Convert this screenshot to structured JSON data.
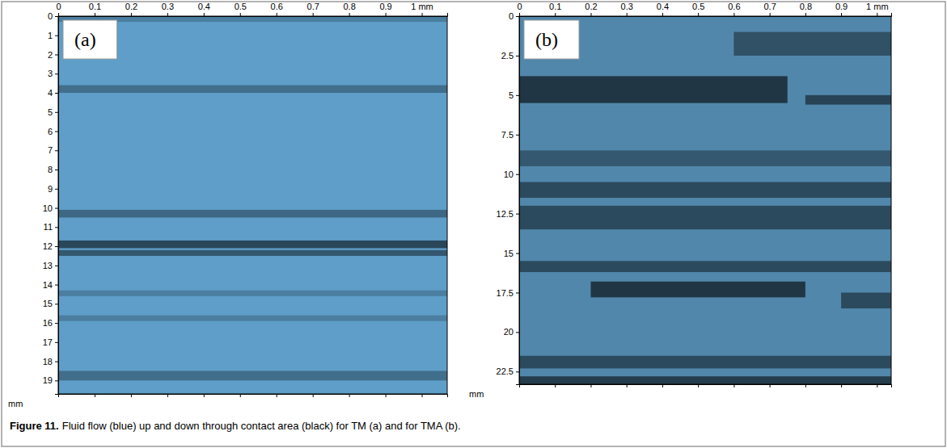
{
  "caption_label": "Figure 11.",
  "caption": "Fluid flow (blue) up and down through contact area (black) for TM (a) and for TMA (b).",
  "chart_data": [
    {
      "type": "contact_map",
      "label": "(a)",
      "y_label": "mm",
      "color": "#6cb4e4",
      "xlim": [
        0,
        1.07
      ],
      "xticks": [
        0,
        0.1,
        0.2,
        0.3,
        0.4,
        0.5,
        0.6,
        0.7,
        0.8,
        0.9,
        {
          "value": 1,
          "label": "1 mm"
        }
      ],
      "ylim": [
        0,
        19.7
      ],
      "yticks": [
        0,
        1,
        2,
        3,
        4,
        5,
        6,
        7,
        8,
        9,
        10,
        11,
        12,
        13,
        14,
        15,
        16,
        17,
        18,
        19
      ],
      "bands": [
        {
          "x": [
            0,
            1.07
          ],
          "y": [
            0,
            19.7
          ],
          "density": 0.12
        },
        {
          "x": [
            0,
            1.07
          ],
          "y": [
            0,
            0.3
          ],
          "density": 0.2
        },
        {
          "x": [
            0,
            1.07
          ],
          "y": [
            3.6,
            4.0
          ],
          "density": 0.3
        },
        {
          "x": [
            0,
            1.07
          ],
          "y": [
            10.1,
            10.5
          ],
          "density": 0.35
        },
        {
          "x": [
            0,
            1.07
          ],
          "y": [
            11.7,
            12.1
          ],
          "density": 0.55
        },
        {
          "x": [
            0,
            1.07
          ],
          "y": [
            12.2,
            12.5
          ],
          "density": 0.45
        },
        {
          "x": [
            0,
            1.07
          ],
          "y": [
            14.3,
            14.6
          ],
          "density": 0.2
        },
        {
          "x": [
            0,
            1.07
          ],
          "y": [
            15.6,
            15.9
          ],
          "density": 0.2
        },
        {
          "x": [
            0,
            1.07
          ],
          "y": [
            18.5,
            19.0
          ],
          "density": 0.3
        }
      ]
    },
    {
      "type": "contact_map",
      "label": "(b)",
      "y_label": "mm",
      "color": "#6cb4e4",
      "xlim": [
        0,
        1.04
      ],
      "xticks": [
        0,
        0.1,
        0.2,
        0.3,
        0.4,
        0.5,
        0.6,
        0.7,
        0.8,
        0.9,
        {
          "value": 1,
          "label": "1 mm"
        }
      ],
      "ylim": [
        0,
        23.3
      ],
      "yticks": [
        0,
        2.5,
        5,
        7.5,
        10,
        12.5,
        15,
        17.5,
        20,
        22.5
      ],
      "bands": [
        {
          "x": [
            0,
            1.04
          ],
          "y": [
            0,
            23.3
          ],
          "density": 0.25
        },
        {
          "x": [
            0.6,
            1.04
          ],
          "y": [
            1.0,
            2.5
          ],
          "density": 0.4
        },
        {
          "x": [
            0,
            0.75
          ],
          "y": [
            3.8,
            5.5
          ],
          "density": 0.6
        },
        {
          "x": [
            0.8,
            1.04
          ],
          "y": [
            5.0,
            5.6
          ],
          "density": 0.5
        },
        {
          "x": [
            0,
            1.04
          ],
          "y": [
            8.5,
            9.5
          ],
          "density": 0.35
        },
        {
          "x": [
            0,
            1.04
          ],
          "y": [
            10.5,
            11.5
          ],
          "density": 0.45
        },
        {
          "x": [
            0,
            1.04
          ],
          "y": [
            12.0,
            13.5
          ],
          "density": 0.45
        },
        {
          "x": [
            0,
            1.04
          ],
          "y": [
            15.5,
            16.2
          ],
          "density": 0.45
        },
        {
          "x": [
            0.2,
            0.8
          ],
          "y": [
            16.8,
            17.8
          ],
          "density": 0.6
        },
        {
          "x": [
            0.9,
            1.04
          ],
          "y": [
            17.5,
            18.5
          ],
          "density": 0.45
        },
        {
          "x": [
            0,
            1.04
          ],
          "y": [
            21.5,
            22.3
          ],
          "density": 0.45
        },
        {
          "x": [
            0,
            1.04
          ],
          "y": [
            22.8,
            23.3
          ],
          "density": 0.55
        }
      ]
    }
  ]
}
